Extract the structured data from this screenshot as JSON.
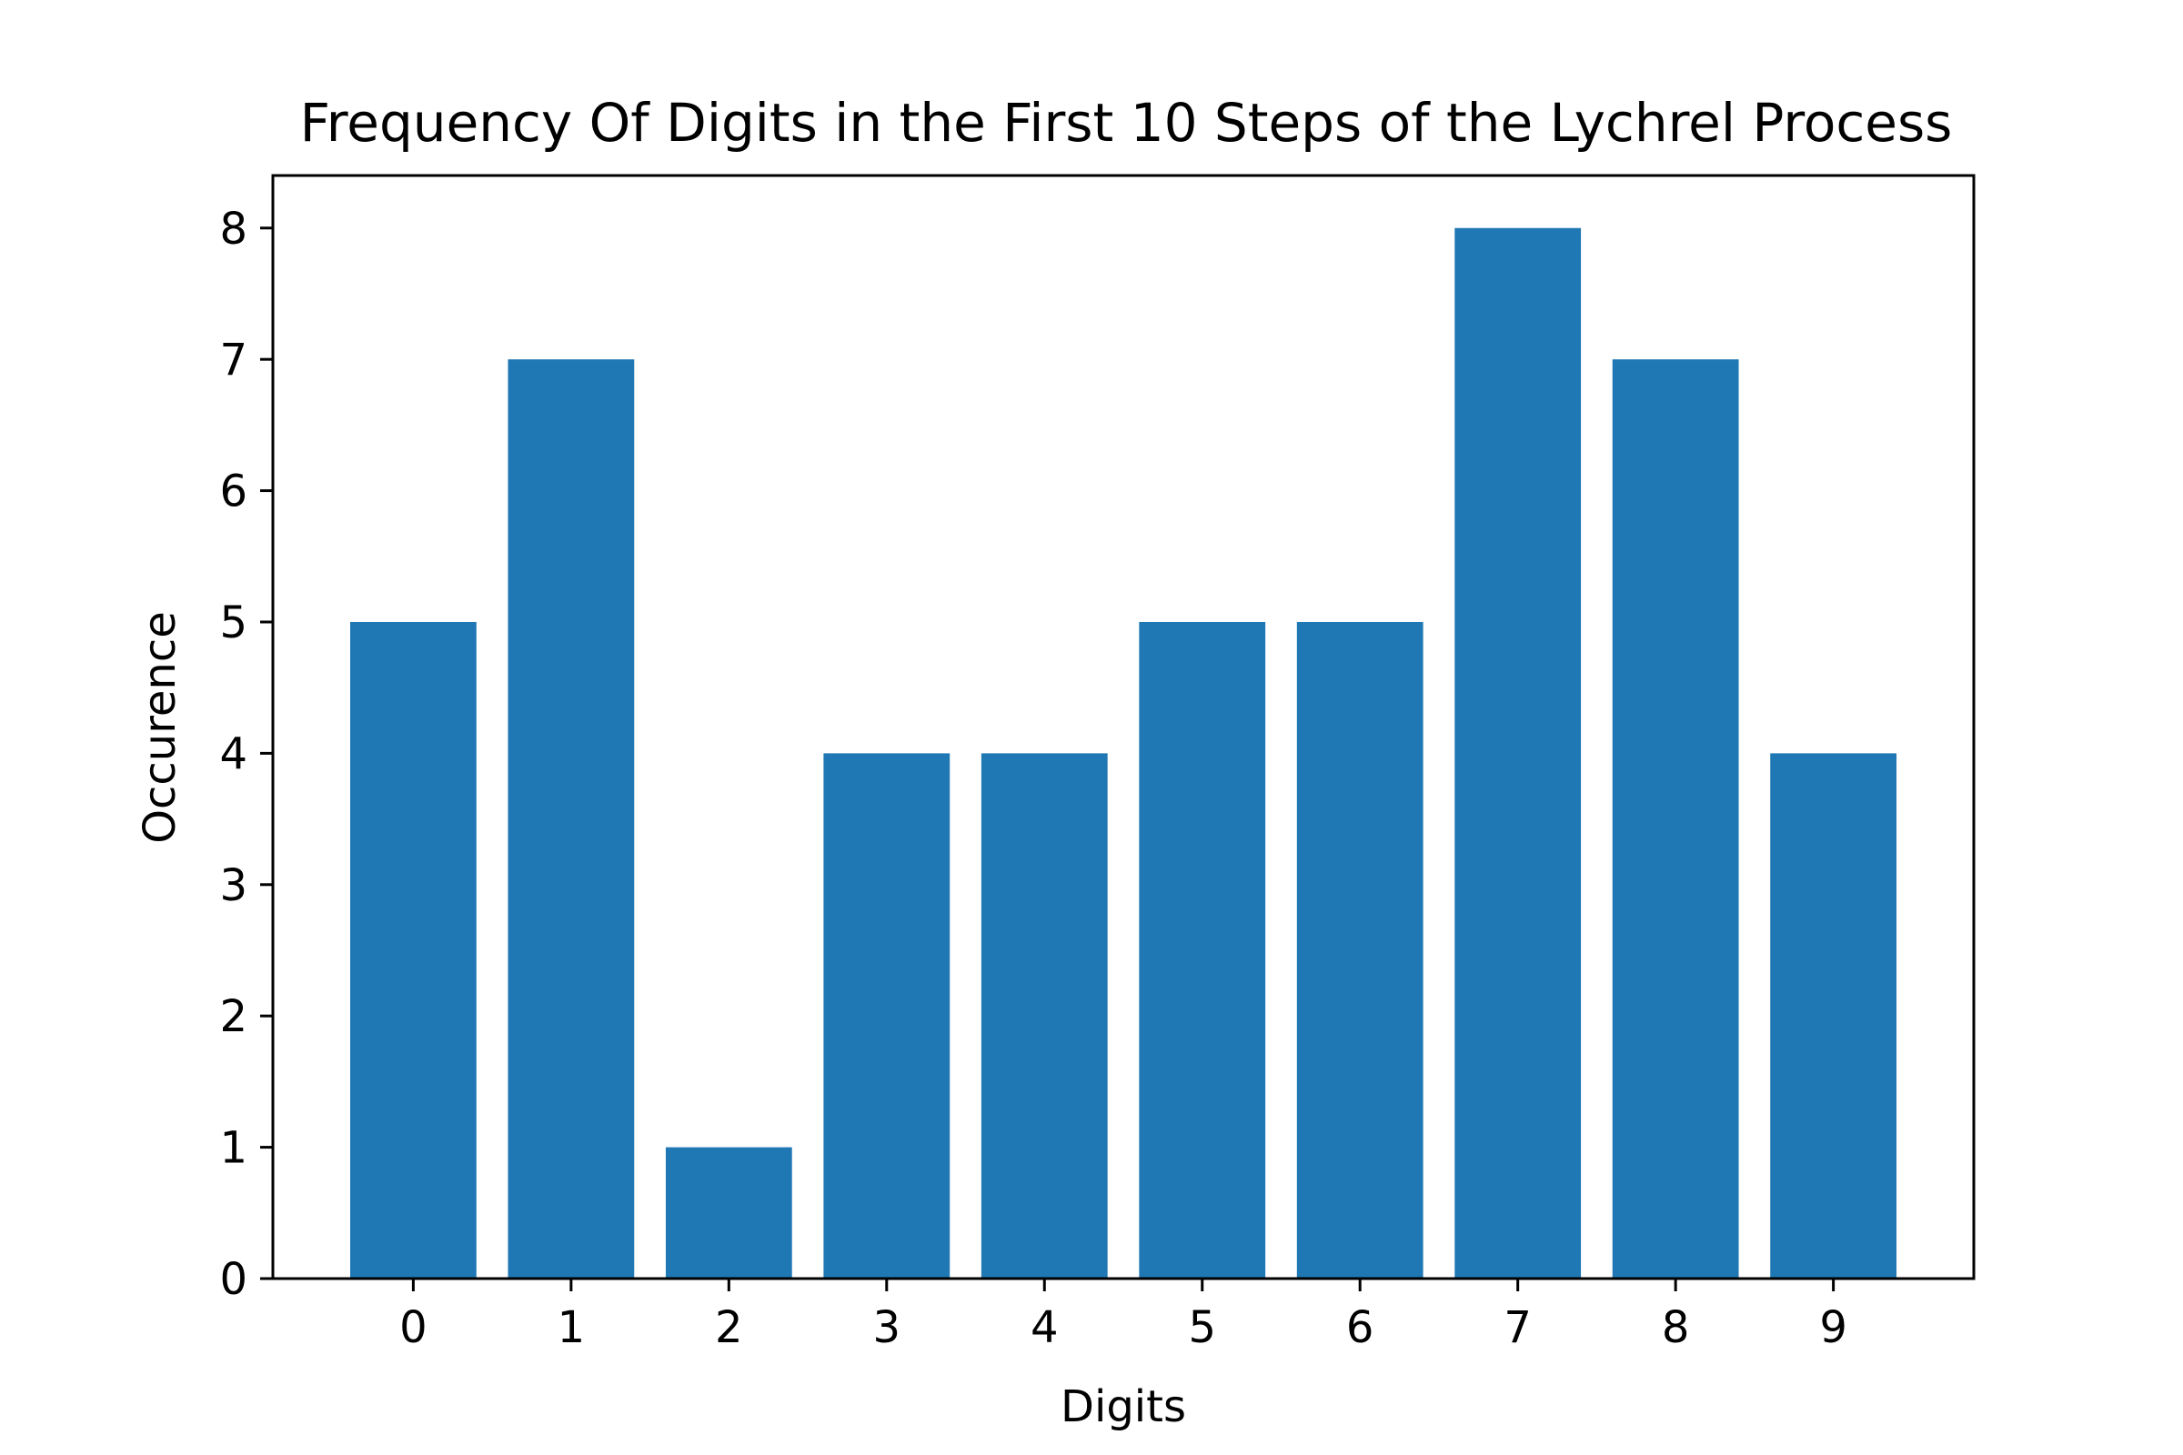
{
  "chart_data": {
    "type": "bar",
    "title": "Frequency Of Digits in the First 10 Steps of the Lychrel Process",
    "xlabel": "Digits",
    "ylabel": "Occurence",
    "categories": [
      "0",
      "1",
      "2",
      "3",
      "4",
      "5",
      "6",
      "7",
      "8",
      "9"
    ],
    "values": [
      5,
      7,
      1,
      4,
      4,
      5,
      5,
      8,
      7,
      4
    ],
    "yticks": [
      "0",
      "1",
      "2",
      "3",
      "4",
      "5",
      "6",
      "7",
      "8"
    ],
    "ylim": [
      0,
      8.4
    ],
    "xlim": [
      -0.89,
      9.89
    ],
    "bar_color": "#1f77b4",
    "grid": false,
    "legend": "none"
  }
}
